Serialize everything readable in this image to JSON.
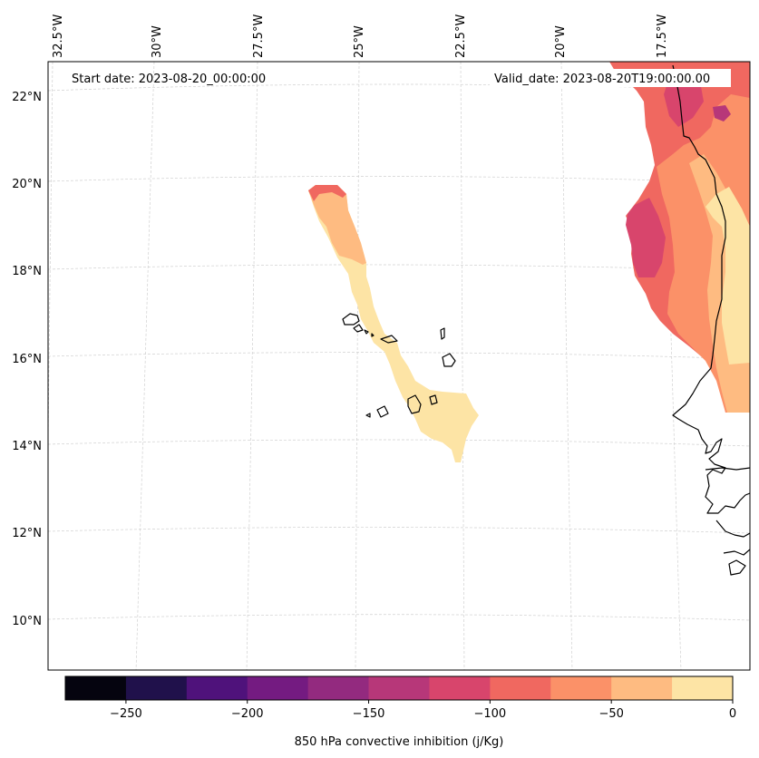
{
  "header": {
    "start_date": "Start date: 2023-08-20_00:00:00",
    "valid_date": "Valid_date: 2023-08-20T19:00:00.00"
  },
  "longitude_labels": [
    "32.5°W",
    "30°W",
    "27.5°W",
    "25°W",
    "22.5°W",
    "20°W",
    "17.5°W"
  ],
  "latitude_labels": [
    "22°N",
    "20°N",
    "18°N",
    "16°N",
    "14°N",
    "12°N",
    "10°N"
  ],
  "colorbar": {
    "label": "850 hPa convective inhibition (j/Kg)",
    "ticks": [
      "−250",
      "−200",
      "−150",
      "−100",
      "−50",
      "0"
    ],
    "levels": [
      -275,
      -250,
      -225,
      -200,
      -175,
      -150,
      -125,
      -100,
      -75,
      -50,
      -25,
      0
    ],
    "colors": [
      "#05040f",
      "#20114b",
      "#4f127b",
      "#741b81",
      "#932a7f",
      "#b73779",
      "#d8456c",
      "#f06860",
      "#fb9168",
      "#febb81",
      "#fde4a5"
    ]
  },
  "colors": {
    "coastline": "#000000",
    "grid": "#cccccc",
    "axis_frame": "#000000"
  }
}
